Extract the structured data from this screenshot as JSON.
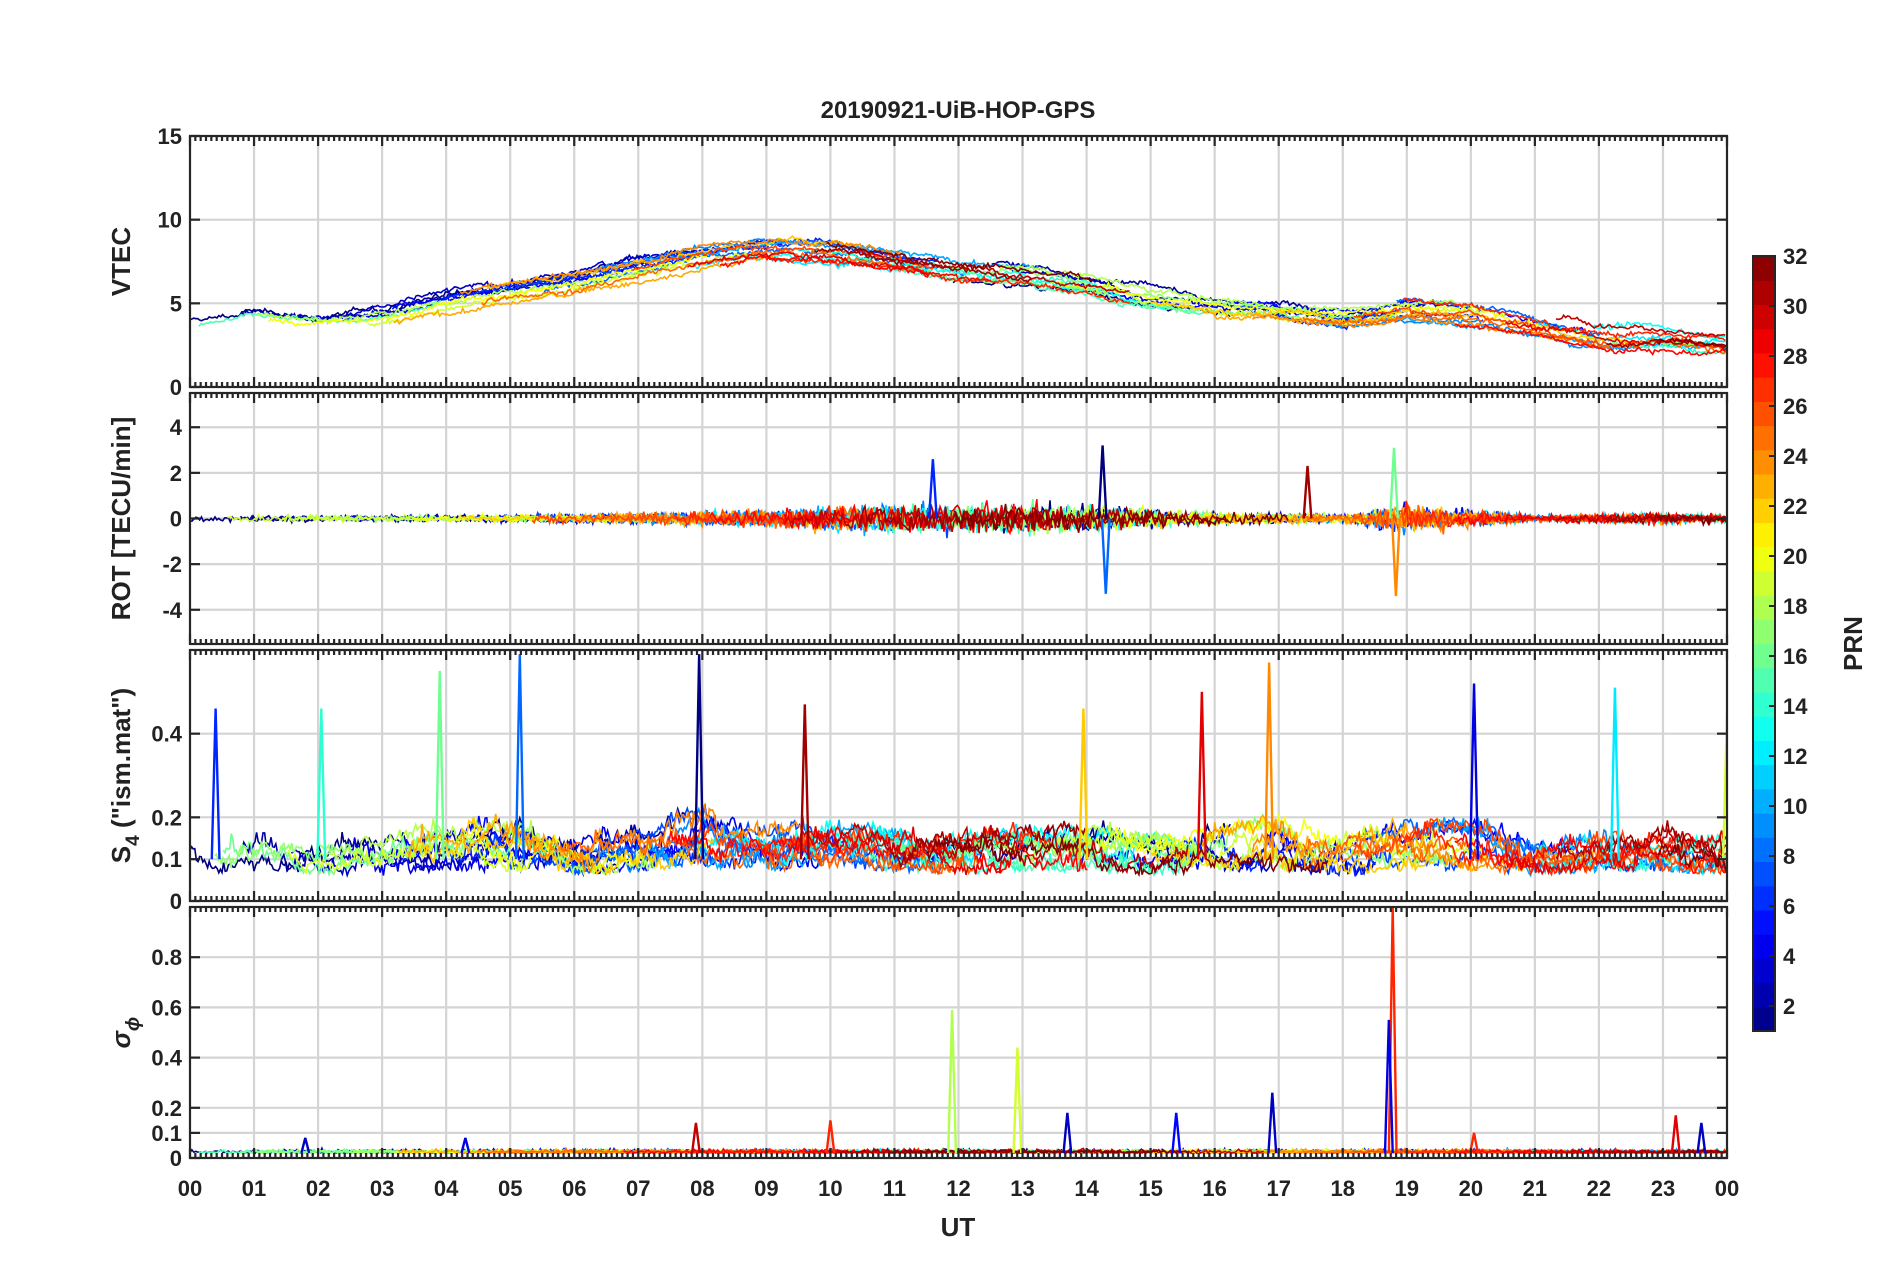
{
  "chart_data": {
    "type": "line",
    "title": "20190921-UiB-HOP-GPS",
    "xlabel": "UT",
    "x_range_hours": [
      0,
      24
    ],
    "x_tick_labels": [
      "00",
      "01",
      "02",
      "03",
      "04",
      "05",
      "06",
      "07",
      "08",
      "09",
      "10",
      "11",
      "12",
      "13",
      "14",
      "15",
      "16",
      "17",
      "18",
      "19",
      "20",
      "21",
      "22",
      "23",
      "00"
    ],
    "grid": true,
    "colorbar": {
      "label": "PRN",
      "range": [
        1,
        32
      ],
      "tick_labels": [
        "2",
        "4",
        "6",
        "8",
        "10",
        "12",
        "14",
        "16",
        "18",
        "20",
        "22",
        "24",
        "26",
        "28",
        "30",
        "32"
      ],
      "colormap": "jet",
      "position": "right"
    },
    "panels": [
      {
        "id": "vtec",
        "ylabel": "VTEC",
        "ylim": [
          0,
          15
        ],
        "y_ticks": [
          0,
          5,
          10,
          15
        ],
        "y_tick_labels": [
          "0",
          "5",
          "10",
          "15"
        ],
        "envelope": {
          "x": [
            0,
            1,
            2,
            3,
            4,
            5,
            6,
            7,
            8,
            9,
            10,
            11,
            12,
            13,
            14,
            15,
            16,
            17,
            18,
            19,
            20,
            21,
            22,
            23,
            24
          ],
          "mean": [
            3.6,
            4.2,
            3.8,
            4.2,
            5.0,
            5.6,
            6.2,
            7.0,
            7.8,
            8.3,
            8.2,
            7.6,
            7.0,
            6.8,
            6.2,
            5.3,
            4.8,
            4.6,
            4.2,
            4.8,
            4.6,
            3.8,
            3.0,
            3.0,
            2.6
          ],
          "spread": [
            1.4,
            1.3,
            1.0,
            1.5,
            1.8,
            1.8,
            2.0,
            2.0,
            1.8,
            1.5,
            1.6,
            1.4,
            1.4,
            1.4,
            1.2,
            1.6,
            1.2,
            1.0,
            1.0,
            1.6,
            1.4,
            1.0,
            1.0,
            0.9,
            0.9
          ]
        }
      },
      {
        "id": "rot",
        "ylabel": "ROT [TECU/min]",
        "ylim": [
          -5.5,
          5.5
        ],
        "y_ticks": [
          -4,
          -2,
          0,
          2,
          4
        ],
        "y_tick_labels": [
          "-4",
          "-2",
          "0",
          "2",
          "4"
        ],
        "noise_amplitude": {
          "x": [
            0,
            1,
            2,
            3,
            4,
            5,
            6,
            7,
            8,
            9,
            10,
            11,
            12,
            13,
            14,
            15,
            16,
            17,
            18,
            19,
            20,
            21,
            22,
            23,
            24
          ],
          "amp": [
            0.25,
            0.25,
            0.2,
            0.2,
            0.2,
            0.25,
            0.3,
            0.35,
            0.45,
            0.55,
            0.8,
            0.9,
            0.9,
            0.95,
            0.9,
            0.6,
            0.4,
            0.35,
            0.3,
            0.9,
            0.6,
            0.25,
            0.3,
            0.35,
            0.3
          ]
        },
        "spikes": [
          {
            "t": 14.25,
            "v": 3.2
          },
          {
            "t": 14.3,
            "v": -3.3
          },
          {
            "t": 18.8,
            "v": 3.1
          },
          {
            "t": 18.83,
            "v": -3.4
          },
          {
            "t": 17.45,
            "v": 2.3
          },
          {
            "t": 11.6,
            "v": 2.6
          }
        ]
      },
      {
        "id": "s4",
        "ylabel_main": "S",
        "ylabel_sub": "4",
        "ylabel_rest": " (\"ism.mat\")",
        "ylim": [
          0,
          0.6
        ],
        "y_ticks": [
          0,
          0.1,
          0.2,
          0.4
        ],
        "y_tick_labels": [
          "0",
          "0.1",
          "0.2",
          "0.4"
        ],
        "level": {
          "x": [
            0,
            1,
            2,
            3,
            4,
            5,
            6,
            7,
            8,
            9,
            10,
            11,
            12,
            13,
            14,
            15,
            16,
            17,
            18,
            19,
            20,
            21,
            22,
            23,
            24
          ],
          "base": [
            0.08,
            0.09,
            0.08,
            0.08,
            0.09,
            0.09,
            0.08,
            0.09,
            0.1,
            0.09,
            0.1,
            0.09,
            0.08,
            0.09,
            0.09,
            0.08,
            0.09,
            0.09,
            0.08,
            0.09,
            0.09,
            0.08,
            0.09,
            0.09,
            0.08
          ],
          "amp": [
            0.12,
            0.16,
            0.14,
            0.12,
            0.2,
            0.18,
            0.14,
            0.16,
            0.22,
            0.16,
            0.18,
            0.14,
            0.14,
            0.16,
            0.17,
            0.14,
            0.16,
            0.2,
            0.14,
            0.18,
            0.18,
            0.14,
            0.14,
            0.16,
            0.14
          ]
        },
        "spikes": [
          {
            "t": 7.95,
            "v": 0.59
          },
          {
            "t": 5.15,
            "v": 0.59
          },
          {
            "t": 3.9,
            "v": 0.55
          },
          {
            "t": 16.85,
            "v": 0.57
          },
          {
            "t": 9.6,
            "v": 0.47
          },
          {
            "t": 0.4,
            "v": 0.46
          },
          {
            "t": 2.05,
            "v": 0.46
          },
          {
            "t": 13.95,
            "v": 0.46
          },
          {
            "t": 15.8,
            "v": 0.5
          },
          {
            "t": 20.05,
            "v": 0.52
          },
          {
            "t": 22.25,
            "v": 0.51
          },
          {
            "t": 24.0,
            "v": 0.45
          }
        ]
      },
      {
        "id": "sigma_phi",
        "ylabel_main": "σ",
        "ylabel_sub": "ϕ",
        "ylim": [
          0,
          1.0
        ],
        "y_ticks": [
          0,
          0.1,
          0.2,
          0.4,
          0.6,
          0.8
        ],
        "y_tick_labels": [
          "0",
          "0.1",
          "0.2",
          "0.4",
          "0.6",
          "0.8"
        ],
        "baseline": 0.02,
        "spikes": [
          {
            "t": 18.78,
            "v": 1.0,
            "prn": 27
          },
          {
            "t": 18.72,
            "v": 0.55,
            "prn": 4
          },
          {
            "t": 11.9,
            "v": 0.59,
            "prn": 18
          },
          {
            "t": 12.92,
            "v": 0.44,
            "prn": 19
          },
          {
            "t": 16.9,
            "v": 0.26,
            "prn": 3
          },
          {
            "t": 15.4,
            "v": 0.18,
            "prn": 5
          },
          {
            "t": 13.7,
            "v": 0.18,
            "prn": 3
          },
          {
            "t": 7.9,
            "v": 0.14,
            "prn": 30
          },
          {
            "t": 10.0,
            "v": 0.15,
            "prn": 27
          },
          {
            "t": 23.6,
            "v": 0.14,
            "prn": 3
          },
          {
            "t": 23.2,
            "v": 0.17,
            "prn": 29
          },
          {
            "t": 20.05,
            "v": 0.1,
            "prn": 27
          },
          {
            "t": 1.8,
            "v": 0.08,
            "prn": 3
          },
          {
            "t": 4.3,
            "v": 0.08,
            "prn": 4
          }
        ]
      }
    ],
    "satellites_shown": 30
  }
}
